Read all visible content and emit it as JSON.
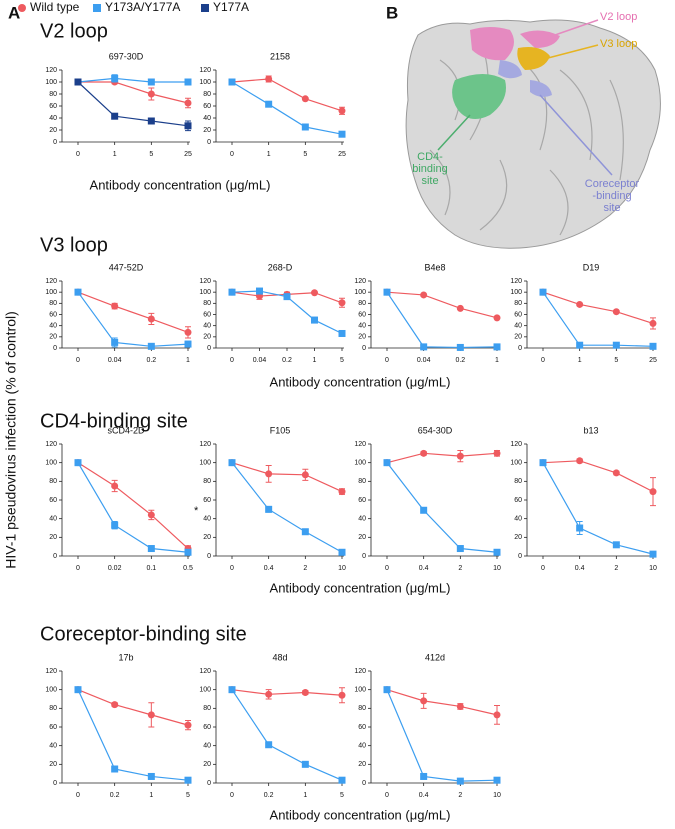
{
  "figure": {
    "panels": [
      "A",
      "B"
    ],
    "y_label": "HIV-1 pseudovirus infection (% of control)",
    "sections": [
      {
        "title": "V2 loop",
        "x_label": "Antibody concentration (μg/mL)"
      },
      {
        "title": "V3 loop",
        "x_label": "Antibody concentration (μg/mL)"
      },
      {
        "title": "CD4-binding site",
        "x_label": "Antibody concentration (μg/mL)"
      },
      {
        "title": "Coreceptor-binding site",
        "x_label": "Antibody concentration (μg/mL)"
      }
    ],
    "structure_labels": [
      [
        "V2 loop"
      ],
      [
        "V3 loop"
      ],
      [
        "CD4-",
        "binding",
        "site"
      ],
      [
        "Coreceptor",
        "-binding",
        "site"
      ]
    ]
  },
  "chart_data": [
    {
      "type": "line",
      "title": "697-30D",
      "categories": [
        "0",
        "1",
        "5",
        "25"
      ],
      "series": [
        {
          "name": "Wild type",
          "color": "#ee5a5f",
          "marker": "circle",
          "values": [
            100,
            100,
            80,
            65
          ],
          "errors": [
            0,
            3,
            10,
            8
          ]
        },
        {
          "name": "Y173A/Y177A",
          "color": "#3c9ef0",
          "marker": "square",
          "values": [
            100,
            106,
            100,
            100
          ],
          "errors": [
            0,
            6,
            3,
            0
          ]
        },
        {
          "name": "Y177A",
          "color": "#1b3f8b",
          "marker": "square",
          "values": [
            100,
            43,
            35,
            27
          ],
          "errors": [
            0,
            2,
            3,
            8
          ]
        }
      ],
      "ylim": [
        0,
        120
      ],
      "yticks": [
        0,
        20,
        40,
        60,
        80,
        100,
        120
      ]
    },
    {
      "type": "line",
      "title": "2158",
      "categories": [
        "0",
        "1",
        "5",
        "25"
      ],
      "series": [
        {
          "name": "Wild type",
          "color": "#ee5a5f",
          "marker": "circle",
          "values": [
            100,
            105,
            72,
            52
          ],
          "errors": [
            0,
            5,
            2,
            6
          ]
        },
        {
          "name": "Y173A/Y177A",
          "color": "#3c9ef0",
          "marker": "square",
          "values": [
            100,
            63,
            25,
            13
          ],
          "errors": [
            0,
            2,
            2,
            1
          ]
        }
      ],
      "ylim": [
        0,
        120
      ],
      "yticks": [
        0,
        20,
        40,
        60,
        80,
        100,
        120
      ]
    },
    {
      "type": "line",
      "title": "447-52D",
      "categories": [
        "0",
        "0.04",
        "0.2",
        "1"
      ],
      "series": [
        {
          "name": "Wild type",
          "color": "#ee5a5f",
          "marker": "circle",
          "values": [
            100,
            75,
            52,
            28
          ],
          "errors": [
            0,
            5,
            10,
            10
          ]
        },
        {
          "name": "Y173A/Y177A",
          "color": "#3c9ef0",
          "marker": "square",
          "values": [
            100,
            10,
            3,
            7
          ],
          "errors": [
            0,
            8,
            2,
            5
          ]
        }
      ],
      "ylim": [
        0,
        120
      ],
      "yticks": [
        0,
        20,
        40,
        60,
        80,
        100,
        120
      ]
    },
    {
      "type": "line",
      "title": "268-D",
      "categories": [
        "0",
        "0.04",
        "0.2",
        "1",
        "5"
      ],
      "series": [
        {
          "name": "Wild type",
          "color": "#ee5a5f",
          "marker": "circle",
          "values": [
            100,
            93,
            96,
            99,
            81
          ],
          "errors": [
            0,
            6,
            4,
            2,
            8
          ]
        },
        {
          "name": "Y173A/Y177A",
          "color": "#3c9ef0",
          "marker": "square",
          "values": [
            100,
            102,
            92,
            50,
            26
          ],
          "errors": [
            0,
            3,
            3,
            5,
            3
          ]
        }
      ],
      "ylim": [
        0,
        120
      ],
      "yticks": [
        0,
        20,
        40,
        60,
        80,
        100,
        120
      ]
    },
    {
      "type": "line",
      "title": "B4e8",
      "categories": [
        "0",
        "0.04",
        "0.2",
        "1"
      ],
      "series": [
        {
          "name": "Wild type",
          "color": "#ee5a5f",
          "marker": "circle",
          "values": [
            100,
            95,
            71,
            54
          ],
          "errors": [
            0,
            2,
            2,
            2
          ]
        },
        {
          "name": "Y173A/Y177A",
          "color": "#3c9ef0",
          "marker": "square",
          "values": [
            100,
            2,
            1,
            2
          ],
          "errors": [
            0,
            1,
            1,
            1
          ]
        }
      ],
      "ylim": [
        0,
        120
      ],
      "yticks": [
        0,
        20,
        40,
        60,
        80,
        100,
        120
      ]
    },
    {
      "type": "line",
      "title": "D19",
      "categories": [
        "0",
        "1",
        "5",
        "25"
      ],
      "series": [
        {
          "name": "Wild type",
          "color": "#ee5a5f",
          "marker": "circle",
          "values": [
            100,
            78,
            65,
            44
          ],
          "errors": [
            0,
            2,
            2,
            10
          ]
        },
        {
          "name": "Y173A/Y177A",
          "color": "#3c9ef0",
          "marker": "square",
          "values": [
            100,
            5,
            5,
            3
          ],
          "errors": [
            0,
            1,
            1,
            1
          ]
        }
      ],
      "ylim": [
        0,
        120
      ],
      "yticks": [
        0,
        20,
        40,
        60,
        80,
        100,
        120
      ]
    },
    {
      "type": "line",
      "title": "sCD4-2D",
      "categories": [
        "0",
        "0.02",
        "0.1",
        "0.5"
      ],
      "series": [
        {
          "name": "Wild type",
          "color": "#ee5a5f",
          "marker": "circle",
          "values": [
            100,
            75,
            44,
            8
          ],
          "errors": [
            0,
            6,
            5,
            3
          ]
        },
        {
          "name": "Y173A/Y177A",
          "color": "#3c9ef0",
          "marker": "square",
          "values": [
            100,
            33,
            8,
            4
          ],
          "errors": [
            0,
            4,
            2,
            2
          ]
        }
      ],
      "ylim": [
        0,
        120
      ],
      "yticks": [
        0,
        20,
        40,
        60,
        80,
        100,
        120
      ]
    },
    {
      "type": "line",
      "title": "F105",
      "annotation": "*",
      "categories": [
        "0",
        "0.4",
        "2",
        "10"
      ],
      "series": [
        {
          "name": "Wild type",
          "color": "#ee5a5f",
          "marker": "circle",
          "values": [
            100,
            88,
            87,
            69
          ],
          "errors": [
            0,
            9,
            6,
            3
          ]
        },
        {
          "name": "Y173A/Y177A",
          "color": "#3c9ef0",
          "marker": "square",
          "values": [
            100,
            50,
            26,
            4
          ],
          "errors": [
            0,
            3,
            2,
            1
          ]
        }
      ],
      "ylim": [
        0,
        120
      ],
      "yticks": [
        0,
        20,
        40,
        60,
        80,
        100,
        120
      ]
    },
    {
      "type": "line",
      "title": "654-30D",
      "categories": [
        "0",
        "0.4",
        "2",
        "10"
      ],
      "series": [
        {
          "name": "Wild type",
          "color": "#ee5a5f",
          "marker": "circle",
          "values": [
            100,
            110,
            107,
            110
          ],
          "errors": [
            0,
            2,
            6,
            3
          ]
        },
        {
          "name": "Y173A/Y177A",
          "color": "#3c9ef0",
          "marker": "square",
          "values": [
            100,
            49,
            8,
            4
          ],
          "errors": [
            0,
            2,
            1,
            1
          ]
        }
      ],
      "ylim": [
        0,
        120
      ],
      "yticks": [
        0,
        20,
        40,
        60,
        80,
        100,
        120
      ]
    },
    {
      "type": "line",
      "title": "b13",
      "categories": [
        "0",
        "0.4",
        "2",
        "10"
      ],
      "series": [
        {
          "name": "Wild type",
          "color": "#ee5a5f",
          "marker": "circle",
          "values": [
            100,
            102,
            89,
            69
          ],
          "errors": [
            0,
            2,
            2,
            15
          ]
        },
        {
          "name": "Y173A/Y177A",
          "color": "#3c9ef0",
          "marker": "square",
          "values": [
            100,
            30,
            12,
            2
          ],
          "errors": [
            0,
            7,
            2,
            1
          ]
        }
      ],
      "ylim": [
        0,
        120
      ],
      "yticks": [
        0,
        20,
        40,
        60,
        80,
        100,
        120
      ]
    },
    {
      "type": "line",
      "title": "17b",
      "categories": [
        "0",
        "0.2",
        "1",
        "5"
      ],
      "series": [
        {
          "name": "Wild type",
          "color": "#ee5a5f",
          "marker": "circle",
          "values": [
            100,
            84,
            73,
            62
          ],
          "errors": [
            0,
            2,
            13,
            5
          ]
        },
        {
          "name": "Y173A/Y177A",
          "color": "#3c9ef0",
          "marker": "square",
          "values": [
            100,
            15,
            7,
            3
          ],
          "errors": [
            0,
            2,
            2,
            1
          ]
        }
      ],
      "ylim": [
        0,
        120
      ],
      "yticks": [
        0,
        20,
        40,
        60,
        80,
        100,
        120
      ]
    },
    {
      "type": "line",
      "title": "48d",
      "categories": [
        "0",
        "0.2",
        "1",
        "5"
      ],
      "series": [
        {
          "name": "Wild type",
          "color": "#ee5a5f",
          "marker": "circle",
          "values": [
            100,
            95,
            97,
            94
          ],
          "errors": [
            0,
            5,
            2,
            8
          ]
        },
        {
          "name": "Y173A/Y177A",
          "color": "#3c9ef0",
          "marker": "square",
          "values": [
            100,
            41,
            20,
            3
          ],
          "errors": [
            0,
            1,
            1,
            1
          ]
        }
      ],
      "ylim": [
        0,
        120
      ],
      "yticks": [
        0,
        20,
        40,
        60,
        80,
        100,
        120
      ]
    },
    {
      "type": "line",
      "title": "412d",
      "categories": [
        "0",
        "0.4",
        "2",
        "10"
      ],
      "series": [
        {
          "name": "Wild type",
          "color": "#ee5a5f",
          "marker": "circle",
          "values": [
            100,
            88,
            82,
            73
          ],
          "errors": [
            0,
            8,
            3,
            10
          ]
        },
        {
          "name": "Y173A/Y177A",
          "color": "#3c9ef0",
          "marker": "square",
          "values": [
            100,
            7,
            2,
            3
          ],
          "errors": [
            0,
            2,
            1,
            1
          ]
        }
      ],
      "ylim": [
        0,
        120
      ],
      "yticks": [
        0,
        20,
        40,
        60,
        80,
        100,
        120
      ]
    }
  ]
}
